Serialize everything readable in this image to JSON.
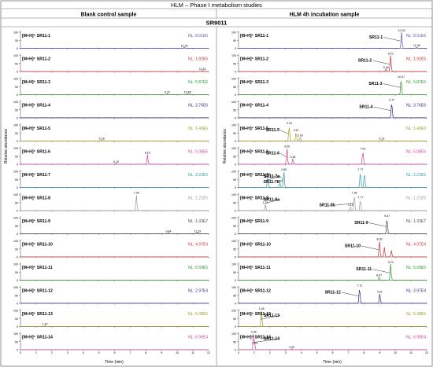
{
  "figure": {
    "title": "HLM – Phase I metabolism studies",
    "left_header": "Blank control sample",
    "right_header": "HLM 4h incubation sample",
    "compound": "SR9011",
    "y_axis_label": "Relative abundance",
    "x_axis_label": "Time (min)"
  },
  "chart_data": {
    "type": "line",
    "x_ticks": [
      0,
      1,
      2,
      3,
      4,
      5,
      6,
      7,
      8,
      9,
      10,
      11,
      12
    ],
    "y_ticks": [
      0,
      50,
      100
    ],
    "xlim": [
      0,
      12
    ],
    "ylim": [
      0,
      100
    ],
    "panels": [
      {
        "row": 1,
        "label": "[M+H]⁺ SR11-1",
        "nl": "NL: 8.01E6",
        "color": "#5a5ab8",
        "left_peaks": [
          {
            "t": 10.45,
            "h": 6,
            "label": "10.45"
          }
        ],
        "right_peaks": [
          {
            "t": 10.4,
            "h": 100,
            "label": "10.40"
          },
          {
            "t": 11.36,
            "h": 8,
            "label": "11.36"
          }
        ],
        "annotations": [
          {
            "text": "SR11-1"
          }
        ]
      },
      {
        "row": 2,
        "label": "[M+H]⁺ SR11-2",
        "nl": "NL: 1.92E5",
        "color": "#c83232",
        "left_peaks": [
          {
            "t": 11.61,
            "h": 6,
            "label": "11.61"
          }
        ],
        "right_peaks": [
          {
            "t": 9.7,
            "h": 100,
            "label": "9.70"
          },
          {
            "t": 9.4,
            "h": 15,
            "label": "9.40"
          }
        ],
        "annotations": [
          {
            "text": "SR11-2"
          }
        ]
      },
      {
        "row": 3,
        "label": "[M+H]⁺ SR11-3",
        "nl": "NL: 5.87E6",
        "color": "#2e9b2e",
        "left_peaks": [
          {
            "t": 9.37,
            "h": 6,
            "label": "9.37"
          },
          {
            "t": 10.66,
            "h": 6,
            "label": "10.66"
          }
        ],
        "right_peaks": [
          {
            "t": 10.37,
            "h": 100,
            "label": "10.37"
          }
        ],
        "annotations": [
          {
            "text": "SR11-3"
          }
        ]
      },
      {
        "row": 4,
        "label": "[M+H]⁺ SR11-4",
        "nl": "NL: 3.76E6",
        "color": "#2b2b8e",
        "left_peaks": [],
        "right_peaks": [
          {
            "t": 9.77,
            "h": 100,
            "label": "9.77"
          }
        ],
        "annotations": [
          {
            "text": "SR11-4"
          }
        ]
      },
      {
        "row": 5,
        "label": "[M+H]⁺ SR11-5",
        "nl": "NL: 1.49E6",
        "color": "#a0a020",
        "left_peaks": [
          {
            "t": 5.18,
            "h": 6,
            "label": "5.18"
          }
        ],
        "right_peaks": [
          {
            "t": 3.23,
            "h": 100,
            "label": "3.23"
          },
          {
            "t": 3.67,
            "h": 55,
            "label": "3.67"
          },
          {
            "t": 3.93,
            "h": 25,
            "label": "3.93"
          },
          {
            "t": 9.13,
            "h": 6,
            "label": "9.13"
          }
        ],
        "annotations": [
          {
            "text": "SR11-5"
          }
        ]
      },
      {
        "row": 6,
        "label": "[M+H]⁺ SR11-6",
        "nl": "NL: 5.08E5",
        "color": "#d040a0",
        "left_peaks": [
          {
            "t": 6.1,
            "h": 6,
            "label": "6.10"
          },
          {
            "t": 8.1,
            "h": 60,
            "label": "8.10"
          }
        ],
        "right_peaks": [
          {
            "t": 3.09,
            "h": 100,
            "label": "3.09"
          },
          {
            "t": 3.46,
            "h": 35,
            "label": "3.46"
          },
          {
            "t": 7.93,
            "h": 85,
            "label": "7.93"
          }
        ],
        "annotations": [
          {
            "text": "SR11-6"
          }
        ]
      },
      {
        "row": 7,
        "label": "[M+H]⁺ SR11-7",
        "nl": "NL: 2.22E5",
        "color": "#2aa0a8",
        "left_peaks": [],
        "right_peaks": [
          {
            "t": 1.87,
            "h": 70,
            "label": "1.87"
          },
          {
            "t": 2.63,
            "h": 30,
            "label": "2.63"
          },
          {
            "t": 2.89,
            "h": 100,
            "label": "2.89"
          },
          {
            "t": 7.77,
            "h": 100,
            "label": "7.77"
          },
          {
            "t": 8.03,
            "h": 90,
            "label": ""
          }
        ],
        "annotations": [
          {
            "text": "SR11-7a"
          },
          {
            "text": "SR11-7b"
          },
          {
            "text": "SR11-7c"
          }
        ]
      },
      {
        "row": 8,
        "label": "[M+H]⁺ SR11-8",
        "nl": "NL: 1.21E5",
        "color": "#9a9a9a",
        "left_peaks": [
          {
            "t": 7.39,
            "h": 100,
            "label": "7.39"
          }
        ],
        "right_peaks": [
          {
            "t": 1.71,
            "h": 40,
            "label": "1.71"
          },
          {
            "t": 7.38,
            "h": 100,
            "label": "7.38"
          },
          {
            "t": 7.13,
            "h": 25,
            "label": "7.13"
          },
          {
            "t": 7.77,
            "h": 70,
            "label": "7.77"
          }
        ],
        "annotations": [
          {
            "text": "SR11-8a"
          },
          {
            "text": "SR11-8b"
          }
        ]
      },
      {
        "row": 9,
        "label": "[M+H]⁺ SR11-9",
        "nl": "NL: 1.33E7",
        "color": "#444444",
        "left_peaks": [
          {
            "t": 9.44,
            "h": 6,
            "label": "9.44"
          },
          {
            "t": 11.29,
            "h": 6,
            "label": "11.29"
          }
        ],
        "right_peaks": [
          {
            "t": 9.47,
            "h": 100,
            "label": "9.47"
          }
        ],
        "annotations": [
          {
            "text": "SR11-9"
          }
        ]
      },
      {
        "row": 10,
        "label": "[M+H]⁺ SR11-10",
        "nl": "NL: 4.97E4",
        "color": "#c83232",
        "left_peaks": [],
        "right_peaks": [
          {
            "t": 8.99,
            "h": 100,
            "label": "8.99"
          },
          {
            "t": 9.3,
            "h": 60,
            "label": ""
          },
          {
            "t": 9.75,
            "h": 40,
            "label": ""
          }
        ],
        "annotations": [
          {
            "text": "SR11-10"
          }
        ]
      },
      {
        "row": 11,
        "label": "[M+H]⁺ SR11-11",
        "nl": "NL: 6.69E5",
        "color": "#2e9b2e",
        "left_peaks": [],
        "right_peaks": [
          {
            "t": 9.7,
            "h": 100,
            "label": "9.70"
          },
          {
            "t": 8.97,
            "h": 20,
            "label": "8.97"
          }
        ],
        "annotations": [
          {
            "text": "SR11-11"
          }
        ]
      },
      {
        "row": 12,
        "label": "[M+H]⁺ SR11-12",
        "nl": "NL: 2.97E4",
        "color": "#2b2b8e",
        "left_peaks": [],
        "right_peaks": [
          {
            "t": 7.72,
            "h": 100,
            "label": "7.72"
          },
          {
            "t": 9.01,
            "h": 60,
            "label": "9.01"
          }
        ],
        "annotations": [
          {
            "text": "SR11-12"
          }
        ]
      },
      {
        "row": 13,
        "label": "[M+H]⁺ SR11-13",
        "nl": "NL: 5.48E5",
        "color": "#a0a020",
        "left_peaks": [
          {
            "t": 1.57,
            "h": 6,
            "label": "1.57"
          }
        ],
        "right_peaks": [
          {
            "t": 1.46,
            "h": 100,
            "label": "1.46"
          }
        ],
        "annotations": [
          {
            "text": "SR11-13"
          }
        ]
      },
      {
        "row": 14,
        "label": "[M+H]⁺ SR11-14",
        "nl": "NL: 6.90E4",
        "color": "#d040a0",
        "left_peaks": [],
        "right_peaks": [
          {
            "t": 0.96,
            "h": 100,
            "label": "0.96"
          },
          {
            "t": 1.03,
            "h": 30,
            "label": "1.03"
          },
          {
            "t": 3.39,
            "h": 6,
            "label": "3.39"
          }
        ],
        "annotations": [
          {
            "text": "SR11-14"
          }
        ]
      }
    ]
  }
}
